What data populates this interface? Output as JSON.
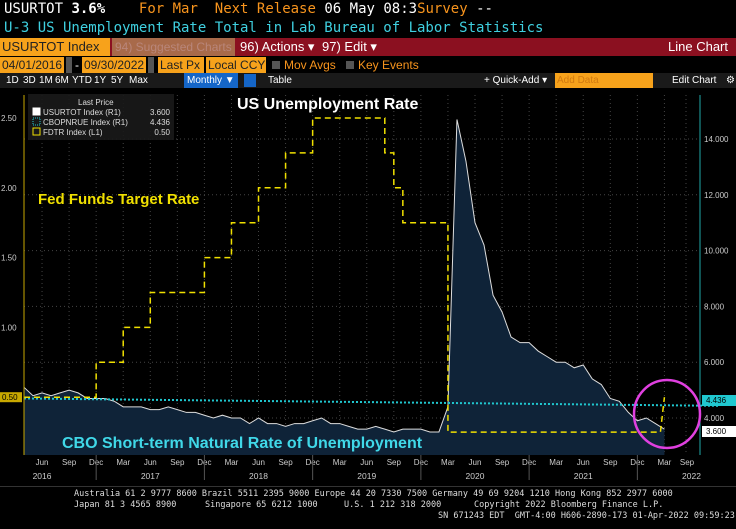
{
  "header": {
    "ticker": "USURTOT",
    "value": "3.6%",
    "period": "For Mar",
    "next_release_label": "Next Release",
    "next_release": "06 May 08:3",
    "survey_label": "Survey",
    "survey": "--",
    "description": "U-3 US Unemployment Rate Total in Lab Bureau of Labor Statistics"
  },
  "toolbar": {
    "security": "USURTOT Index",
    "suggested": "94) Suggested Charts",
    "actions": "96) Actions ▾",
    "edit": "97) Edit ▾",
    "chart_type": "Line Chart"
  },
  "controls": {
    "start_date": "04/01/2016",
    "end_date": "09/30/2022",
    "field": "Last Px",
    "currency": "Local CCY",
    "mov_avgs": "Mov Avgs",
    "key_events": "Key Events"
  },
  "periods": [
    "1D",
    "3D",
    "1M",
    "6M",
    "YTD",
    "1Y",
    "5Y",
    "Max"
  ],
  "frequency": "Monthly ▼",
  "table": "Table",
  "quick_add": "+ Quick-Add ▾",
  "add_data_placeholder": "Add Data",
  "edit_chart": "Edit Chart",
  "colors": {
    "unemployment": "#ffffff",
    "cbo": "#20c8d0",
    "fdtr": "#f0e000",
    "fill": "#0f2338",
    "circle": "#e040e0"
  },
  "chart_data": {
    "type": "line",
    "legend": {
      "title": "Last Price",
      "entries": [
        {
          "name": "USURTOT Index",
          "axis": "(R1)",
          "last": "3.600"
        },
        {
          "name": "CBOPNRUE Index",
          "axis": "(R1)",
          "last": "4.436"
        },
        {
          "name": "FDTR Index",
          "axis": "(L1)",
          "last": "0.50"
        }
      ],
      "placement": "top-left"
    },
    "annotations": {
      "unemployment": "US Unemployment Rate",
      "fdtr": "Fed Funds Target Rate",
      "cbo": "CBO Short-term Natural Rate of Unemployment"
    },
    "x_start": "2016-04",
    "x_end": "2022-09",
    "x_month_ticks": [
      "Jun",
      "Sep",
      "Dec",
      "Mar",
      "Jun",
      "Sep",
      "Dec",
      "Mar",
      "Jun",
      "Sep",
      "Dec",
      "Mar",
      "Jun",
      "Sep",
      "Dec",
      "Mar",
      "Jun",
      "Sep",
      "Dec",
      "Mar",
      "Jun",
      "Sep",
      "Dec",
      "Mar",
      "Sep"
    ],
    "x_years": [
      "2016",
      "2017",
      "2018",
      "2019",
      "2020",
      "2021",
      "2022"
    ],
    "left_axis": {
      "ticks": [
        "0.50",
        "1.00",
        "1.50",
        "2.00",
        "2.50"
      ],
      "range": [
        0,
        2.7
      ]
    },
    "right_axis": {
      "ticks": [
        "4.000",
        "6.000",
        "8.000",
        "10.000",
        "12.000",
        "14.000"
      ],
      "range": [
        2.9,
        15.7
      ]
    },
    "series": [
      {
        "name": "USURTOT Index",
        "axis": "right",
        "start": "2016-04",
        "values": [
          5.1,
          4.8,
          4.9,
          4.8,
          4.9,
          5.0,
          4.9,
          4.7,
          4.7,
          4.7,
          4.6,
          4.4,
          4.4,
          4.4,
          4.3,
          4.3,
          4.4,
          4.3,
          4.2,
          4.2,
          4.1,
          4.0,
          4.1,
          4.0,
          4.0,
          3.8,
          4.0,
          3.8,
          3.8,
          3.7,
          3.8,
          3.8,
          3.9,
          4.0,
          3.8,
          3.8,
          3.7,
          3.6,
          3.6,
          3.7,
          3.6,
          3.5,
          3.6,
          3.6,
          3.6,
          3.5,
          3.5,
          4.4,
          14.7,
          13.2,
          11.0,
          10.2,
          8.4,
          7.8,
          6.9,
          6.7,
          6.7,
          6.4,
          6.2,
          6.0,
          6.0,
          5.8,
          5.9,
          5.4,
          5.2,
          4.7,
          4.6,
          4.2,
          3.9,
          4.0,
          3.8,
          3.6
        ]
      },
      {
        "name": "CBOPNRUE Index",
        "axis": "right",
        "start": "2016-04",
        "end": "2022-09",
        "first": 4.7,
        "last": 4.436
      },
      {
        "name": "FDTR Index",
        "axis": "left",
        "steps": [
          [
            "2016-04",
            0.5
          ],
          [
            "2016-12",
            0.75
          ],
          [
            "2017-03",
            1.0
          ],
          [
            "2017-06",
            1.25
          ],
          [
            "2017-12",
            1.5
          ],
          [
            "2018-03",
            1.75
          ],
          [
            "2018-06",
            2.0
          ],
          [
            "2018-09",
            2.25
          ],
          [
            "2018-12",
            2.5
          ],
          [
            "2019-08",
            2.25
          ],
          [
            "2019-09",
            2.0
          ],
          [
            "2019-10",
            1.75
          ],
          [
            "2020-03",
            0.25
          ],
          [
            "2022-03",
            0.5
          ]
        ]
      }
    ]
  },
  "footer": {
    "line1": "Australia 61 2 9777 8600 Brazil 5511 2395 9000 Europe 44 20 7330 7500 Germany 49 69 9204 1210 Hong Kong 852 2977 6000",
    "line2a": "Japan 81 3 4565 8900",
    "line2b": "Singapore 65 6212 1000",
    "line2c": "U.S. 1 212 318 2000",
    "line2d": "Copyright 2022 Bloomberg Finance L.P.",
    "line3": "SN 671243 EDT  GMT-4:00 H606-2890-173 01-Apr-2022 09:59:23"
  }
}
